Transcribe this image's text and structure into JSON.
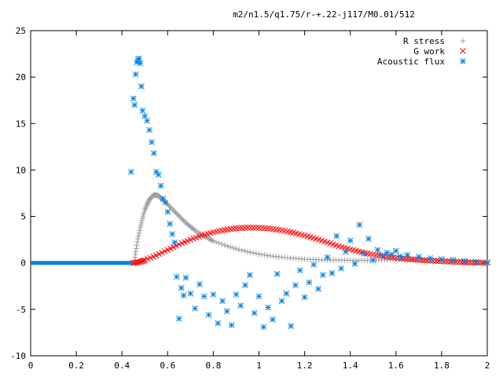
{
  "chart_data": {
    "type": "scatter",
    "title": "m2/n1.5/q1.75/r-+.22-j117/M0.01/512",
    "xlabel": "",
    "ylabel": "",
    "xlim": [
      0,
      2
    ],
    "ylim": [
      -10,
      25
    ],
    "xticks": [
      "0",
      "0.2",
      "0.4",
      "0.6",
      "0.8",
      "1",
      "1.2",
      "1.4",
      "1.6",
      "1.8",
      "2"
    ],
    "yticks": [
      "25",
      "20",
      "15",
      "10",
      "5",
      "0",
      "-5",
      "-10"
    ],
    "legend_placement": "top-right",
    "series": [
      {
        "name": "R stress",
        "marker": "plus",
        "color": "#a0a0a0",
        "points": [
          [
            0.455,
            0.0
          ],
          [
            0.46,
            1.2
          ],
          [
            0.47,
            2.6
          ],
          [
            0.48,
            3.8
          ],
          [
            0.49,
            4.8
          ],
          [
            0.5,
            5.7
          ],
          [
            0.51,
            6.3
          ],
          [
            0.52,
            6.8
          ],
          [
            0.53,
            7.1
          ],
          [
            0.54,
            7.3
          ],
          [
            0.55,
            7.3
          ],
          [
            0.56,
            7.2
          ],
          [
            0.57,
            7.0
          ],
          [
            0.58,
            6.8
          ],
          [
            0.6,
            6.3
          ],
          [
            0.62,
            5.8
          ],
          [
            0.64,
            5.3
          ],
          [
            0.66,
            4.8
          ],
          [
            0.68,
            4.3
          ],
          [
            0.7,
            3.9
          ],
          [
            0.72,
            3.5
          ],
          [
            0.75,
            3.0
          ],
          [
            0.78,
            2.6
          ],
          [
            0.8,
            2.35
          ],
          [
            0.85,
            1.9
          ],
          [
            0.9,
            1.5
          ],
          [
            0.95,
            1.2
          ],
          [
            1.0,
            0.95
          ],
          [
            1.05,
            0.75
          ],
          [
            1.1,
            0.6
          ],
          [
            1.15,
            0.5
          ],
          [
            1.2,
            0.4
          ],
          [
            1.25,
            0.35
          ],
          [
            1.3,
            0.3
          ],
          [
            1.35,
            0.3
          ],
          [
            1.4,
            0.28
          ],
          [
            1.45,
            0.28
          ],
          [
            1.5,
            0.3
          ],
          [
            1.55,
            0.32
          ],
          [
            1.6,
            0.35
          ],
          [
            1.65,
            0.36
          ],
          [
            1.7,
            0.35
          ],
          [
            1.75,
            0.32
          ],
          [
            1.8,
            0.28
          ],
          [
            1.85,
            0.24
          ],
          [
            1.9,
            0.18
          ],
          [
            1.95,
            0.12
          ],
          [
            2.0,
            0.05
          ]
        ]
      },
      {
        "name": "G work",
        "marker": "cross",
        "color": "#ff0000",
        "points": [
          [
            0.45,
            0.0
          ],
          [
            0.48,
            0.1
          ],
          [
            0.5,
            0.3
          ],
          [
            0.55,
            0.8
          ],
          [
            0.6,
            1.4
          ],
          [
            0.65,
            2.0
          ],
          [
            0.7,
            2.5
          ],
          [
            0.75,
            2.95
          ],
          [
            0.8,
            3.3
          ],
          [
            0.85,
            3.55
          ],
          [
            0.9,
            3.72
          ],
          [
            0.95,
            3.8
          ],
          [
            1.0,
            3.78
          ],
          [
            1.05,
            3.68
          ],
          [
            1.1,
            3.5
          ],
          [
            1.15,
            3.25
          ],
          [
            1.2,
            2.95
          ],
          [
            1.25,
            2.6
          ],
          [
            1.3,
            2.2
          ],
          [
            1.35,
            1.8
          ],
          [
            1.4,
            1.45
          ],
          [
            1.45,
            1.15
          ],
          [
            1.5,
            0.9
          ],
          [
            1.55,
            0.7
          ],
          [
            1.6,
            0.55
          ],
          [
            1.65,
            0.42
          ],
          [
            1.7,
            0.32
          ],
          [
            1.75,
            0.24
          ],
          [
            1.8,
            0.17
          ],
          [
            1.85,
            0.11
          ],
          [
            1.9,
            0.06
          ],
          [
            1.95,
            0.03
          ],
          [
            2.0,
            0.0
          ]
        ]
      },
      {
        "name": "Acoustic flux",
        "marker": "star",
        "color": "#0a82e0",
        "points": [
          [
            0.44,
            9.8
          ],
          [
            0.45,
            17.7
          ],
          [
            0.455,
            17.0
          ],
          [
            0.46,
            20.3
          ],
          [
            0.465,
            21.6
          ],
          [
            0.47,
            21.9
          ],
          [
            0.475,
            22.0
          ],
          [
            0.48,
            21.5
          ],
          [
            0.485,
            19.0
          ],
          [
            0.49,
            16.4
          ],
          [
            0.5,
            15.8
          ],
          [
            0.51,
            15.3
          ],
          [
            0.52,
            14.3
          ],
          [
            0.53,
            13.0
          ],
          [
            0.54,
            11.8
          ],
          [
            0.55,
            9.8
          ],
          [
            0.56,
            9.5
          ],
          [
            0.57,
            8.3
          ],
          [
            0.58,
            6.9
          ],
          [
            0.59,
            6.5
          ],
          [
            0.6,
            5.5
          ],
          [
            0.61,
            4.2
          ],
          [
            0.62,
            3.1
          ],
          [
            0.63,
            2.2
          ],
          [
            0.64,
            -1.5
          ],
          [
            0.65,
            -6.0
          ],
          [
            0.66,
            -2.7
          ],
          [
            0.67,
            -3.5
          ],
          [
            0.68,
            -1.6
          ],
          [
            0.7,
            -3.3
          ],
          [
            0.72,
            -4.9
          ],
          [
            0.74,
            -2.3
          ],
          [
            0.76,
            -3.6
          ],
          [
            0.78,
            -5.6
          ],
          [
            0.8,
            -3.4
          ],
          [
            0.82,
            -6.5
          ],
          [
            0.84,
            -4.1
          ],
          [
            0.86,
            -5.2
          ],
          [
            0.88,
            -6.7
          ],
          [
            0.9,
            -3.4
          ],
          [
            0.92,
            -4.6
          ],
          [
            0.94,
            -2.4
          ],
          [
            0.96,
            -1.3
          ],
          [
            0.98,
            -5.4
          ],
          [
            1.0,
            -3.6
          ],
          [
            1.02,
            -6.9
          ],
          [
            1.04,
            -4.8
          ],
          [
            1.06,
            -6.1
          ],
          [
            1.08,
            -1.2
          ],
          [
            1.1,
            -4.1
          ],
          [
            1.12,
            -3.3
          ],
          [
            1.14,
            -6.8
          ],
          [
            1.16,
            -2.4
          ],
          [
            1.18,
            -0.8
          ],
          [
            1.2,
            -3.7
          ],
          [
            1.22,
            -2.1
          ],
          [
            1.24,
            -0.2
          ],
          [
            1.26,
            -2.8
          ],
          [
            1.28,
            -1.3
          ],
          [
            1.3,
            0.6
          ],
          [
            1.32,
            -1.1
          ],
          [
            1.34,
            2.9
          ],
          [
            1.36,
            -0.6
          ],
          [
            1.38,
            1.2
          ],
          [
            1.4,
            2.4
          ],
          [
            1.42,
            -0.1
          ],
          [
            1.44,
            4.1
          ],
          [
            1.46,
            1.0
          ],
          [
            1.48,
            2.6
          ],
          [
            1.5,
            0.3
          ],
          [
            1.52,
            1.4
          ],
          [
            1.54,
            0.8
          ],
          [
            1.56,
            1.1
          ],
          [
            1.58,
            0.9
          ],
          [
            1.6,
            1.3
          ],
          [
            1.62,
            0.7
          ],
          [
            1.65,
            0.85
          ],
          [
            1.7,
            0.65
          ],
          [
            1.75,
            0.5
          ],
          [
            1.8,
            0.4
          ],
          [
            1.85,
            0.3
          ],
          [
            1.9,
            0.2
          ],
          [
            1.95,
            0.1
          ],
          [
            2.0,
            0.05
          ]
        ]
      }
    ]
  }
}
